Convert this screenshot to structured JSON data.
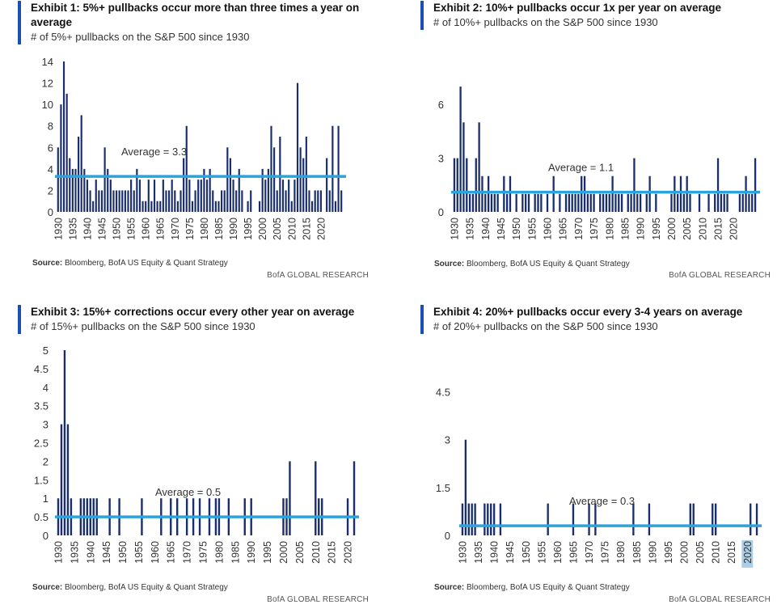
{
  "source_prefix": "Source:",
  "source_text": " Bloomberg, BofA US Equity & Quant Strategy",
  "brand": "BofA GLOBAL RESEARCH",
  "colors": {
    "bar": "#1a2e6e",
    "avg": "#2ba3dc",
    "accent": "#1a4fb4"
  },
  "chart_data": [
    {
      "type": "bar",
      "title": "Exhibit 1: 5%+ pullbacks occur more than three times a year on average",
      "subtitle": "# of 5%+ pullbacks on the S&P 500 since 1930",
      "xlabel": "",
      "ylabel": "",
      "ylim": [
        0,
        14
      ],
      "yticks": [
        "0",
        "2",
        "4",
        "6",
        "8",
        "10",
        "12",
        "14"
      ],
      "ytick_values": [
        0,
        2,
        4,
        6,
        8,
        10,
        12,
        14
      ],
      "xticks": [
        "1930",
        "1935",
        "1940",
        "1945",
        "1950",
        "1955",
        "1960",
        "1965",
        "1970",
        "1975",
        "1980",
        "1985",
        "1990",
        "1995",
        "2000",
        "2005",
        "2010",
        "2015",
        "2020"
      ],
      "x_start": 1930,
      "values": [
        6,
        10,
        14,
        11,
        5,
        4,
        4,
        7,
        9,
        4,
        3,
        2,
        1,
        3,
        2,
        2,
        6,
        4,
        3,
        2,
        2,
        2,
        2,
        2,
        2,
        3,
        2,
        4,
        3,
        1,
        1,
        3,
        1,
        3,
        1,
        1,
        3,
        2,
        2,
        3,
        2,
        1,
        2,
        5,
        8,
        3,
        1,
        2,
        3,
        3,
        4,
        3,
        4,
        2,
        1,
        1,
        2,
        2,
        6,
        5,
        3,
        2,
        4,
        2,
        0,
        1,
        2,
        0,
        0,
        1,
        4,
        3,
        4,
        8,
        6,
        2,
        7,
        3,
        2,
        3,
        1,
        3,
        12,
        6,
        5,
        7,
        2,
        1,
        2,
        2,
        2,
        0,
        5,
        2,
        8,
        1,
        8,
        2
      ],
      "average": 3.3,
      "average_label": "Average = 3.3"
    },
    {
      "type": "bar",
      "title": "Exhibit 2: 10%+ pullbacks occur 1x per year on average",
      "subtitle": "# of 10%+ pullbacks on the S&P 500 since 1930",
      "xlabel": "",
      "ylabel": "",
      "ylim": [
        0,
        7.5
      ],
      "yticks": [
        "0",
        "3",
        "6"
      ],
      "ytick_values": [
        0,
        3,
        6
      ],
      "xticks": [
        "1930",
        "1935",
        "1940",
        "1945",
        "1950",
        "1955",
        "1960",
        "1965",
        "1970",
        "1975",
        "1980",
        "1985",
        "1990",
        "1995",
        "2000",
        "2005",
        "2010",
        "2015",
        "2020"
      ],
      "x_start": 1930,
      "values": [
        3,
        3,
        7,
        5,
        3,
        1,
        1,
        3,
        5,
        2,
        1,
        2,
        1,
        1,
        1,
        0,
        2,
        1,
        2,
        0,
        1,
        0,
        1,
        1,
        1,
        0,
        1,
        1,
        1,
        0,
        1,
        0,
        2,
        0,
        1,
        0,
        1,
        1,
        1,
        1,
        1,
        2,
        2,
        1,
        1,
        1,
        0,
        1,
        1,
        1,
        1,
        2,
        1,
        1,
        1,
        0,
        1,
        1,
        3,
        1,
        1,
        0,
        1,
        2,
        0,
        1,
        0,
        0,
        0,
        0,
        1,
        2,
        1,
        2,
        1,
        2,
        1,
        0,
        0,
        1,
        0,
        0,
        1,
        0,
        1,
        3,
        1,
        1,
        1,
        0,
        0,
        0,
        1,
        1,
        2,
        1,
        1,
        3
      ],
      "average": 1.1,
      "average_label": "Average = 1.1"
    },
    {
      "type": "bar",
      "title": "Exhibit 3: 15%+ corrections occur every other year on average",
      "subtitle": "# of 15%+ pullbacks on the S&P 500 since 1930",
      "xlabel": "",
      "ylabel": "",
      "ylim": [
        0,
        5
      ],
      "yticks": [
        "0",
        "0.5",
        "1",
        "1.5",
        "2",
        "2.5",
        "3",
        "3.5",
        "4",
        "4.5",
        "5"
      ],
      "ytick_values": [
        0,
        0.5,
        1,
        1.5,
        2,
        2.5,
        3,
        3.5,
        4,
        4.5,
        5
      ],
      "xticks": [
        "1930",
        "1935",
        "1940",
        "1945",
        "1950",
        "1955",
        "1960",
        "1965",
        "1970",
        "1975",
        "1980",
        "1985",
        "1990",
        "1995",
        "2000",
        "2005",
        "2010",
        "2015",
        "2020"
      ],
      "x_start": 1930,
      "values": [
        1,
        3,
        5,
        3,
        1,
        0,
        0,
        1,
        1,
        1,
        1,
        1,
        1,
        0,
        0,
        0,
        1,
        0,
        0,
        1,
        0,
        0,
        0,
        0,
        0,
        0,
        1,
        0,
        0,
        0,
        0,
        0,
        1,
        0,
        0,
        1,
        0,
        1,
        0,
        0,
        1,
        0,
        1,
        0,
        1,
        0,
        0,
        1,
        0,
        1,
        1,
        0,
        0,
        1,
        0,
        0,
        0,
        0,
        1,
        0,
        1,
        0,
        0,
        0,
        0,
        0,
        0,
        0,
        0,
        0,
        1,
        1,
        2,
        0,
        0,
        0,
        0,
        0,
        0,
        0,
        2,
        1,
        1,
        0,
        0,
        0,
        0,
        0,
        0,
        0,
        1,
        0,
        2
      ],
      "average": 0.5,
      "average_label": "Average = 0.5"
    },
    {
      "type": "bar",
      "title": "Exhibit 4: 20%+ pullbacks occur every 3-4 years on average",
      "subtitle": "# of 20%+ pullbacks on the S&P 500 since 1930",
      "xlabel": "",
      "ylabel": "",
      "ylim": [
        0,
        5.25
      ],
      "yticks": [
        "0",
        "1.5",
        "3",
        "4.5"
      ],
      "ytick_values": [
        0,
        1.5,
        3,
        4.5
      ],
      "xticks": [
        "1930",
        "1935",
        "1940",
        "1945",
        "1950",
        "1955",
        "1960",
        "1965",
        "1970",
        "1975",
        "1980",
        "1985",
        "1990",
        "1995",
        "2000",
        "2005",
        "2010",
        "2015",
        "2020"
      ],
      "highlight_tick": "2020",
      "x_start": 1930,
      "values": [
        1,
        3,
        1,
        1,
        1,
        0,
        0,
        1,
        1,
        1,
        1,
        0,
        1,
        0,
        0,
        0,
        0,
        0,
        0,
        0,
        0,
        0,
        0,
        0,
        0,
        0,
        0,
        1,
        0,
        0,
        0,
        0,
        0,
        0,
        0,
        1,
        0,
        0,
        0,
        0,
        1,
        0,
        1,
        0,
        0,
        0,
        0,
        0,
        0,
        0,
        0,
        0,
        0,
        0,
        1,
        0,
        0,
        0,
        0,
        1,
        0,
        0,
        0,
        0,
        0,
        0,
        0,
        0,
        0,
        0,
        0,
        0,
        1,
        1,
        0,
        0,
        0,
        0,
        0,
        1,
        1,
        0,
        0,
        0,
        0,
        0,
        0,
        0,
        0,
        0,
        0,
        1,
        0,
        1
      ],
      "average": 0.3,
      "average_label": "Average = 0.3"
    }
  ]
}
